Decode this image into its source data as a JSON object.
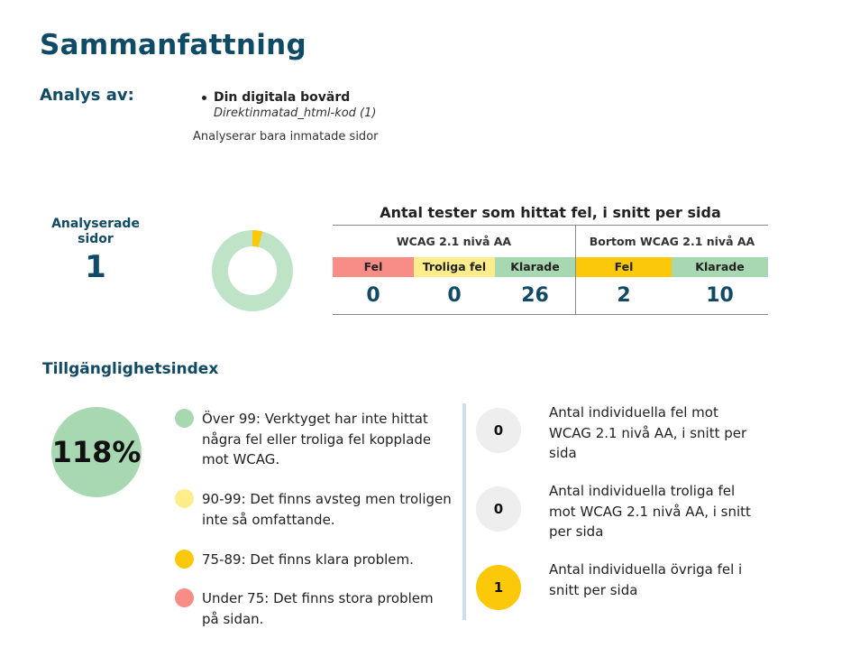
{
  "page": {
    "title": "Sammanfattning"
  },
  "analysis": {
    "label": "Analys av:",
    "source_name": "Din digitala bovärd",
    "source_detail": "Direktinmatad_html-kod (1)",
    "note": "Analyserar bara inmatade sidor"
  },
  "pages": {
    "label": "Analyserade sidor",
    "count": "1"
  },
  "donut": {
    "failed_fraction": 0.04,
    "passed_fraction": 0.96,
    "failed_color": "#fbc80a",
    "passed_color": "#bfe3c7"
  },
  "tests": {
    "title": "Antal tester som hittat fel, i snitt per sida",
    "group_wcag": {
      "label": "WCAG 2.1 nivå AA",
      "columns": [
        {
          "label": "Fel",
          "value": "0",
          "color": "#f88c87"
        },
        {
          "label": "Troliga fel",
          "value": "0",
          "color": "#fdee8b"
        },
        {
          "label": "Klarade",
          "value": "26",
          "color": "#a8d8b1"
        }
      ]
    },
    "group_beyond": {
      "label": "Bortom WCAG 2.1 nivå AA",
      "columns": [
        {
          "label": "Fel",
          "value": "2",
          "color": "#fbc80a"
        },
        {
          "label": "Klarade",
          "value": "10",
          "color": "#a8d8b1"
        }
      ]
    }
  },
  "index": {
    "title": "Tillgänglighetsindex",
    "value": "118%",
    "color": "#a8d8b1",
    "legend": [
      {
        "text": "Över 99: Verktyget har inte hittat några fel eller troliga fel kopplade mot WCAG.",
        "color": "#a8d8b1"
      },
      {
        "text": "90-99: Det finns avsteg men troligen inte så omfattande.",
        "color": "#fdee8b"
      },
      {
        "text": "75-89: Det finns klara problem.",
        "color": "#fbc80a"
      },
      {
        "text": "Under 75: Det finns stora problem på sidan.",
        "color": "#f88c87"
      }
    ]
  },
  "stats": [
    {
      "value": "0",
      "text": "Antal individuella fel mot WCAG 2.1 nivå AA, i snitt per sida",
      "color": "#eeeeee"
    },
    {
      "value": "0",
      "text": "Antal individuella troliga fel mot WCAG 2.1 nivå AA, i snitt per sida",
      "color": "#eeeeee"
    },
    {
      "value": "1",
      "text": "Antal individuella övriga fel i snitt per sida",
      "color": "#fbc80a"
    }
  ]
}
